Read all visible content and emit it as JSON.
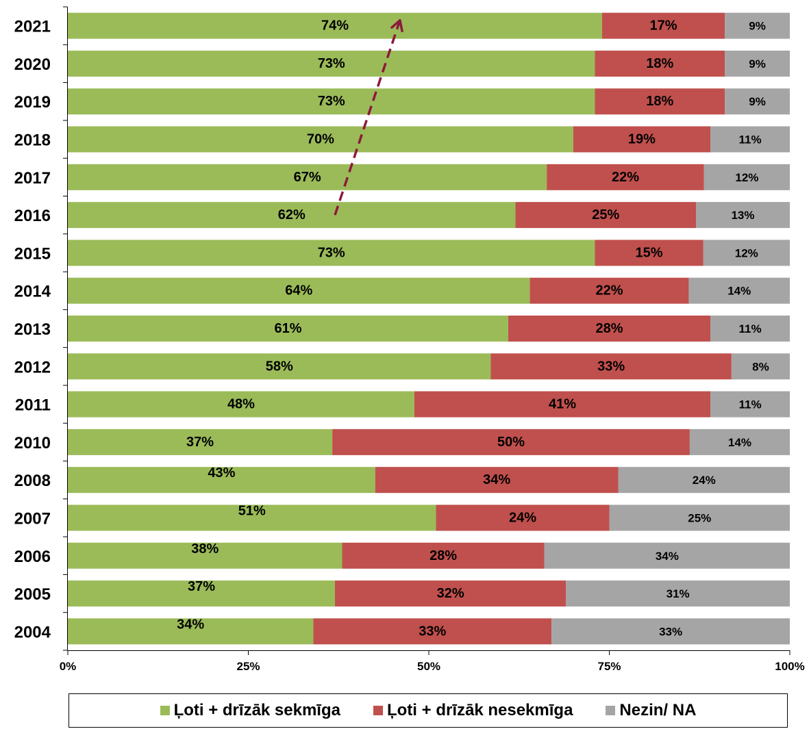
{
  "chart_data": {
    "type": "bar",
    "orientation": "horizontal",
    "stacked": true,
    "categories": [
      "2021",
      "2020",
      "2019",
      "2018",
      "2017",
      "2016",
      "2015",
      "2014",
      "2013",
      "2012",
      "2011",
      "2010",
      "2008",
      "2007",
      "2006",
      "2005",
      "2004"
    ],
    "series": [
      {
        "name": "Ļoti + drīzāk sekmīga",
        "color": "#9BBB59",
        "values": [
          74,
          73,
          73,
          70,
          67,
          62,
          73,
          64,
          61,
          58,
          48,
          37,
          43,
          51,
          38,
          37,
          34
        ],
        "labels": [
          "74%",
          "73%",
          "73%",
          "70%",
          "67%",
          "62%",
          "73%",
          "64%",
          "61%",
          "58%",
          "48%",
          "37%",
          "43%",
          "51%",
          "38%",
          "37%",
          "34%"
        ]
      },
      {
        "name": "Ļoti + drīzāk nesekmīga",
        "color": "#C0504D",
        "values": [
          17,
          18,
          18,
          19,
          22,
          25,
          15,
          22,
          28,
          33,
          41,
          50,
          34,
          24,
          28,
          32,
          33
        ],
        "labels": [
          "17%",
          "18%",
          "18%",
          "19%",
          "22%",
          "25%",
          "15%",
          "22%",
          "28%",
          "33%",
          "41%",
          "50%",
          "34%",
          "24%",
          "28%",
          "32%",
          "33%"
        ]
      },
      {
        "name": "Nezin/ NA",
        "color": "#A5A5A5",
        "values": [
          9,
          9,
          9,
          11,
          12,
          13,
          12,
          14,
          11,
          8,
          11,
          14,
          24,
          25,
          34,
          31,
          33
        ],
        "labels": [
          "9%",
          "9%",
          "9%",
          "11%",
          "12%",
          "13%",
          "12%",
          "14%",
          "11%",
          "8%",
          "11%",
          "14%",
          "24%",
          "25%",
          "34%",
          "31%",
          "33%"
        ]
      }
    ],
    "xticks": [
      "0%",
      "25%",
      "50%",
      "75%",
      "100%"
    ],
    "xlim": [
      0,
      100
    ],
    "grid": false,
    "legend_position": "bottom",
    "trend_arrow": {
      "style": "dashed",
      "color": "#8B1A3C",
      "from": {
        "category": "2016",
        "value": 37
      },
      "to": {
        "category": "2021",
        "value": 46
      }
    },
    "title": "",
    "xlabel": "",
    "ylabel": ""
  }
}
